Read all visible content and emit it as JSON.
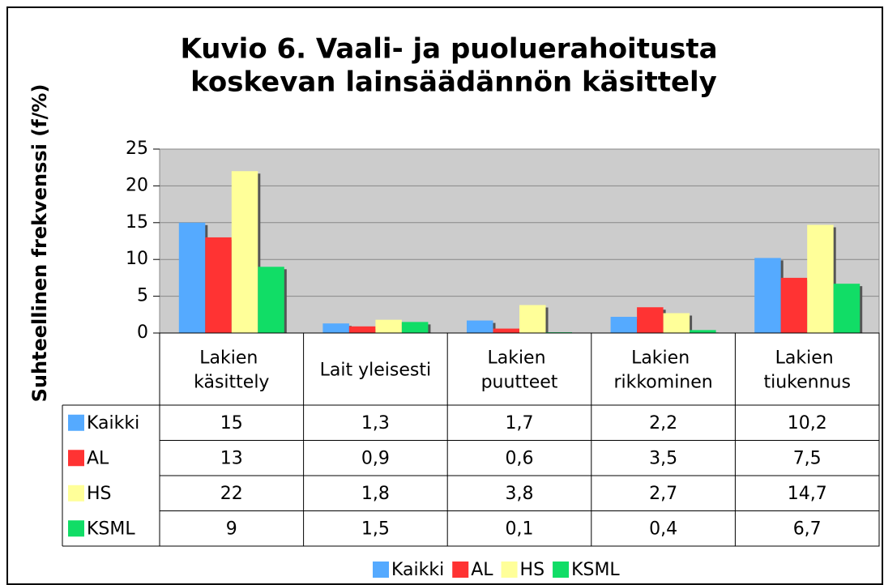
{
  "chart_data": {
    "type": "bar",
    "title": "Kuvio 6. Vaali- ja puoluerahoitusta koskevan lainsäädännön käsittely",
    "y_label": "Suhteellinen frekvenssi (f/%)",
    "categories": [
      "Lakien käsittely",
      "Lait yleisesti",
      "Lakien puutteet",
      "Lakien rikkominen",
      "Lakien tiukennus"
    ],
    "series": [
      {
        "name": "Kaikki",
        "color": "#55aaff",
        "values": [
          15,
          1.3,
          1.7,
          2.2,
          10.2
        ],
        "value_labels": [
          "15",
          "1,3",
          "1,7",
          "2,2",
          "10,2"
        ]
      },
      {
        "name": "AL",
        "color": "#ff3333",
        "values": [
          13,
          0.9,
          0.6,
          3.5,
          7.5
        ],
        "value_labels": [
          "13",
          "0,9",
          "0,6",
          "3,5",
          "7,5"
        ]
      },
      {
        "name": "HS",
        "color": "#ffff99",
        "values": [
          22,
          1.8,
          3.8,
          2.7,
          14.7
        ],
        "value_labels": [
          "22",
          "1,8",
          "3,8",
          "2,7",
          "14,7"
        ]
      },
      {
        "name": "KSML",
        "color": "#11dd66",
        "values": [
          9,
          1.5,
          0.1,
          0.4,
          6.7
        ],
        "value_labels": [
          "9",
          "1,5",
          "0,1",
          "0,4",
          "6,7"
        ]
      }
    ],
    "ylim": [
      0,
      25
    ],
    "yticks": [
      0,
      5,
      10,
      15,
      20,
      25
    ],
    "grid": true,
    "legend": "bottom"
  }
}
